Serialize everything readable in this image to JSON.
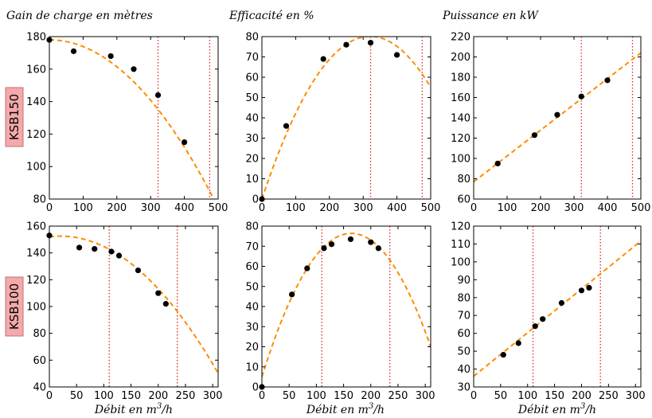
{
  "colors": {
    "fit": "#ff8c00",
    "marker": "#000000",
    "vline": "#d62728",
    "rowbox_fill": "#f4aaaa",
    "rowbox_stroke": "#c07070"
  },
  "columns": [
    {
      "title": "Gain de charge en mètres"
    },
    {
      "title": "Efficacité en %"
    },
    {
      "title": "Puissance en kW"
    }
  ],
  "rows": [
    {
      "label": "KSB150"
    },
    {
      "label": "KSB100"
    }
  ],
  "xlabel": {
    "prefix": "Débit en m",
    "sup": "3",
    "suffix": "/h"
  },
  "chart_data": [
    {
      "type": "scatter",
      "row": "KSB150",
      "title": "Gain de charge en mètres",
      "xlim": [
        0,
        500
      ],
      "ylim": [
        80,
        180
      ],
      "xticks": [
        0,
        100,
        200,
        300,
        400,
        500
      ],
      "yticks": [
        80,
        100,
        120,
        140,
        160,
        180
      ],
      "points": [
        [
          0,
          178
        ],
        [
          72,
          171
        ],
        [
          182,
          168
        ],
        [
          250,
          160
        ],
        [
          322,
          144
        ],
        [
          400,
          115
        ]
      ],
      "fit": [
        178,
        0.0,
        -0.000413
      ],
      "vlines": [
        322,
        475
      ]
    },
    {
      "type": "scatter",
      "row": "KSB150",
      "title": "Efficacité en %",
      "xlim": [
        0,
        500
      ],
      "ylim": [
        0,
        80
      ],
      "xticks": [
        0,
        100,
        200,
        300,
        400,
        500
      ],
      "yticks": [
        0,
        10,
        20,
        30,
        40,
        50,
        60,
        70,
        80
      ],
      "points": [
        [
          0,
          0
        ],
        [
          72,
          36
        ],
        [
          182,
          69
        ],
        [
          250,
          76
        ],
        [
          322,
          77
        ],
        [
          400,
          71
        ]
      ],
      "fit": [
        0,
        0.5,
        -0.00078
      ],
      "vlines": [
        322,
        475
      ]
    },
    {
      "type": "scatter",
      "row": "KSB150",
      "title": "Puissance en kW",
      "xlim": [
        0,
        500
      ],
      "ylim": [
        60,
        220
      ],
      "xticks": [
        0,
        100,
        200,
        300,
        400,
        500
      ],
      "yticks": [
        60,
        80,
        100,
        120,
        140,
        160,
        180,
        200,
        220
      ],
      "points": [
        [
          72,
          95
        ],
        [
          182,
          123
        ],
        [
          250,
          143
        ],
        [
          322,
          161
        ],
        [
          400,
          177
        ]
      ],
      "fit": [
        77,
        0.254,
        0
      ],
      "vlines": [
        322,
        475
      ]
    },
    {
      "type": "scatter",
      "row": "KSB100",
      "title": "Gain de charge en mètres",
      "xlim": [
        0,
        310
      ],
      "ylim": [
        40,
        160
      ],
      "xticks": [
        0,
        50,
        100,
        150,
        200,
        250,
        300
      ],
      "yticks": [
        40,
        60,
        80,
        100,
        120,
        140,
        160
      ],
      "points": [
        [
          0,
          153
        ],
        [
          55,
          144
        ],
        [
          83,
          143
        ],
        [
          114,
          141
        ],
        [
          128,
          138
        ],
        [
          163,
          127
        ],
        [
          200,
          110
        ],
        [
          214,
          102
        ]
      ],
      "fit": [
        152,
        0.05,
        -0.00122
      ],
      "vlines": [
        110,
        235
      ]
    },
    {
      "type": "scatter",
      "row": "KSB100",
      "title": "Efficacité en %",
      "xlim": [
        0,
        310
      ],
      "ylim": [
        0,
        80
      ],
      "xticks": [
        0,
        50,
        100,
        150,
        200,
        250,
        300
      ],
      "yticks": [
        0,
        10,
        20,
        30,
        40,
        50,
        60,
        70,
        80
      ],
      "points": [
        [
          0,
          0
        ],
        [
          55,
          46
        ],
        [
          83,
          59
        ],
        [
          114,
          69
        ],
        [
          128,
          71
        ],
        [
          163,
          73.5
        ],
        [
          200,
          72
        ],
        [
          214,
          69
        ]
      ],
      "fit": [
        5,
        0.87,
        -0.00265
      ],
      "vlines": [
        110,
        235
      ]
    },
    {
      "type": "scatter",
      "row": "KSB100",
      "title": "Puissance en kW",
      "xlim": [
        0,
        310
      ],
      "ylim": [
        30,
        120
      ],
      "xticks": [
        0,
        50,
        100,
        150,
        200,
        250,
        300
      ],
      "yticks": [
        30,
        40,
        50,
        60,
        70,
        80,
        90,
        100,
        110,
        120
      ],
      "points": [
        [
          55,
          48
        ],
        [
          83,
          54.5
        ],
        [
          114,
          64
        ],
        [
          128,
          68
        ],
        [
          163,
          77
        ],
        [
          200,
          84
        ],
        [
          214,
          85.5
        ]
      ],
      "fit": [
        36,
        0.244,
        0
      ],
      "vlines": [
        110,
        235
      ]
    }
  ]
}
